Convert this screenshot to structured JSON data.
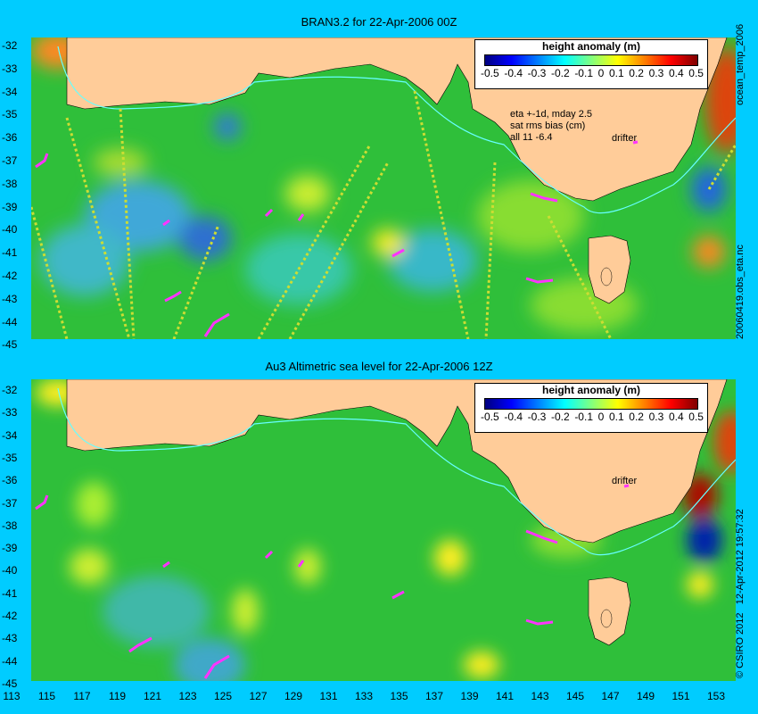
{
  "panel1": {
    "title": "BRAN3.2 for 22-Apr-2006 00Z",
    "legend_title": "height anomaly (m)",
    "legend_ticks": [
      "-0.5",
      "-0.4",
      "-0.3",
      "-0.2",
      "-0.1",
      "0",
      "0.1",
      "0.2",
      "0.3",
      "0.4",
      "0.5"
    ],
    "info_lines": [
      "eta +-1d, mday 2.5",
      "sat rms bias (cm)",
      "all 11 -6.4"
    ],
    "drifter_label": "drifter",
    "side_label_top": "ocean_temp_2006",
    "side_label_bottom": "20060419.obs_eta.nc"
  },
  "panel2": {
    "title": "Au3 Altimetric sea level  for 22-Apr-2006 12Z",
    "legend_title": "height anomaly (m)",
    "legend_ticks": [
      "-0.5",
      "-0.4",
      "-0.3",
      "-0.2",
      "-0.1",
      "0",
      "0.1",
      "0.2",
      "0.3",
      "0.4",
      "0.5"
    ],
    "drifter_label": "drifter",
    "side_label": "12-Apr-2012 19:57:32",
    "credit": "© CSIRO 2012"
  },
  "y_ticks": [
    "-32",
    "-33",
    "-34",
    "-35",
    "-36",
    "-37",
    "-38",
    "-39",
    "-40",
    "-41",
    "-42",
    "-43",
    "-44",
    "-45"
  ],
  "x_ticks": [
    "113",
    "115",
    "117",
    "119",
    "121",
    "123",
    "125",
    "127",
    "129",
    "131",
    "133",
    "135",
    "137",
    "139",
    "141",
    "143",
    "145",
    "147",
    "149",
    "151",
    "153"
  ],
  "colors": {
    "background": "#00ccff",
    "land": "#ffcc99",
    "ocean_base": "#33cc33",
    "drifter": "#ff33ff",
    "contour_line": "#66ffff"
  }
}
